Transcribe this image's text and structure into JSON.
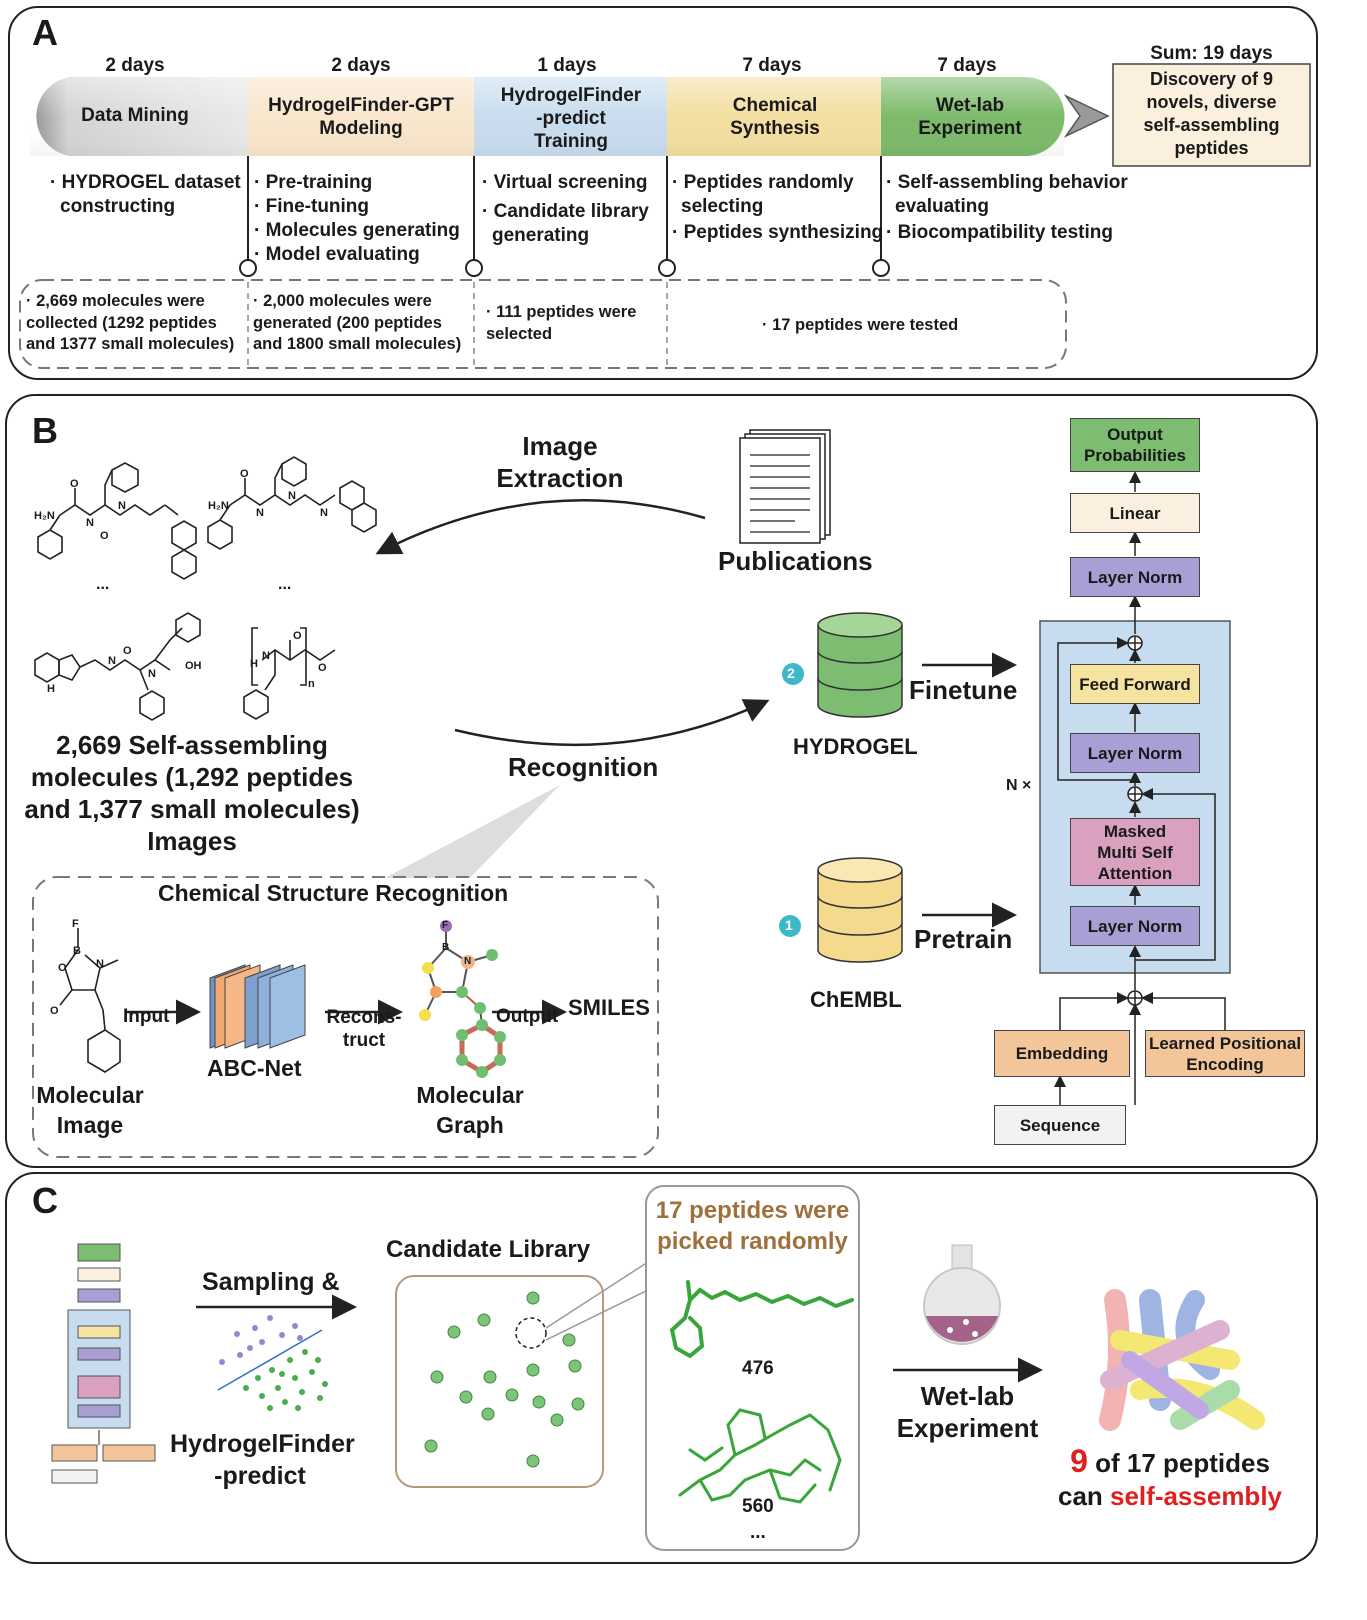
{
  "panel_a": {
    "label": "A",
    "sum": "Sum: 19 days",
    "discovery": [
      "Discovery of 9",
      "novels, diverse",
      "self-assembling",
      "peptides"
    ],
    "stages": [
      {
        "days": "2 days",
        "name": [
          "Data Mining"
        ],
        "tasks": [
          "· HYDROGEL dataset",
          "constructing"
        ],
        "result": [
          "· 2,669 molecules were",
          "collected (1292 peptides",
          "and 1377 small molecules)"
        ]
      },
      {
        "days": "2 days",
        "name": [
          "HydrogelFinder-GPT",
          "Modeling"
        ],
        "tasks": [
          "· Pre-training",
          "· Fine-tuning",
          "· Molecules generating",
          "· Model evaluating"
        ],
        "result": [
          "· 2,000 molecules were",
          "generated (200 peptides",
          "and 1800 small molecules)"
        ]
      },
      {
        "days": "1 days",
        "name": [
          "HydrogelFinder",
          "-predict",
          "Training"
        ],
        "tasks": [
          "· Virtual screening",
          "· Candidate library",
          "generating"
        ],
        "result": [
          "· 111 peptides were",
          "selected"
        ]
      },
      {
        "days": "7 days",
        "name": [
          "Chemical",
          "Synthesis"
        ],
        "tasks": [
          "· Peptides randomly",
          "selecting",
          "· Peptides synthesizing"
        ],
        "result": [
          "· 17 peptides were tested"
        ]
      },
      {
        "days": "7 days",
        "name": [
          "Wet-lab",
          "Experiment"
        ],
        "tasks": [
          "· Self-assembling behavior",
          "evaluating",
          "· Biocompatibility testing"
        ],
        "result": []
      }
    ]
  },
  "panel_b": {
    "label": "B",
    "image_extraction": [
      "Image",
      "Extraction"
    ],
    "publications": "Publications",
    "recognition": "Recognition",
    "molecules_caption": [
      "2,669 Self-assembling",
      "molecules (1,292 peptides",
      "and 1,377 small molecules)",
      "Images"
    ],
    "ellipsis": "...",
    "csr_title": "Chemical Structure Recognition",
    "csr": {
      "input": "Input",
      "abcnet": "ABC-Net",
      "reconstruct": [
        "Recons-",
        "truct"
      ],
      "output": "Output",
      "smiles": "SMILES",
      "mol_image": [
        "Molecular",
        "Image"
      ],
      "mol_graph": [
        "Molecular",
        "Graph"
      ]
    },
    "hydrogel": "HYDROGEL",
    "chembl": "ChEMBL",
    "finetune": "Finetune",
    "pretrain": "Pretrain",
    "badge_1": "1",
    "badge_2": "2",
    "transformer": {
      "output_prob": [
        "Output",
        "Probabilities"
      ],
      "linear": "Linear",
      "layer_norm": "Layer Norm",
      "feed_forward": "Feed Forward",
      "attention": [
        "Masked",
        "Multi Self",
        "Attention"
      ],
      "n_times": "N ×",
      "embedding": "Embedding",
      "positional": [
        "Learned Positional",
        "Encoding"
      ],
      "sequence": "Sequence"
    },
    "atom_labels": {
      "h2n": "H₂N",
      "h": "H",
      "n": "N",
      "o": "O",
      "oh": "OH",
      "f": "F",
      "b": "B",
      "nplus": "N",
      "subscript_n": "n"
    }
  },
  "panel_c": {
    "label": "C",
    "sampling": "Sampling &",
    "predict": [
      "HydrogelFinder",
      "-predict"
    ],
    "candidate_library": "Candidate Library",
    "picked": [
      "17 peptides were",
      "picked randomly"
    ],
    "id_476": "476",
    "id_560": "560",
    "ellipsis": "...",
    "wetlab": [
      "Wet-lab",
      "Experiment"
    ],
    "result_num": "9",
    "result_rest": " of 17 peptides",
    "result_line2_prefix": "can ",
    "result_line2_red": "self-assembly"
  },
  "colors": {
    "grey": "#c9c9c9",
    "peach": "#f9e6cc",
    "blue": "#c9ddef",
    "yellow": "#f3dfa1",
    "green": "#7dba6b",
    "output_green": "#7cbd72",
    "linear_cream": "#fbf0e0",
    "layernorm_purple": "#a89fd4",
    "feedforward_yellow": "#f6e3a0",
    "attention_pink": "#d9a0bf",
    "embedding_orange": "#f2c69a",
    "block_blue": "#c7dcee",
    "teal": "#3cb8c7",
    "brown": "#a0703c",
    "red": "#e02020"
  }
}
